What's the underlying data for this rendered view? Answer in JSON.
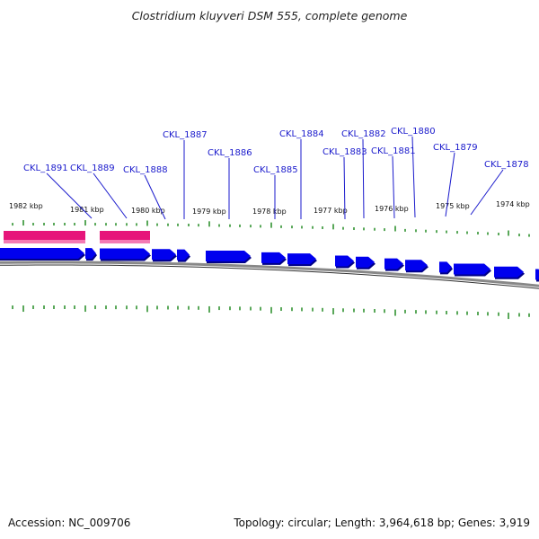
{
  "title": "Clostridium kluyveri DSM 555, complete genome",
  "accession_text": "Accession: NC_009706",
  "summary_text": "Topology: circular; Length: 3,964,618 bp; Genes: 3,919",
  "colors": {
    "gene": "#0000ee",
    "gene_shadow": "#000088",
    "feature": "#e6157a",
    "feature_light": "#f47ab4",
    "tick": "#228b22",
    "backbone": "#888888",
    "label_line": "#1a1acc"
  },
  "kbp_ticks": [
    {
      "label": "1982 kbp",
      "kbp": 1982
    },
    {
      "label": "1981 kbp",
      "kbp": 1981
    },
    {
      "label": "1980 kbp",
      "kbp": 1980
    },
    {
      "label": "1979 kbp",
      "kbp": 1979
    },
    {
      "label": "1978 kbp",
      "kbp": 1978
    },
    {
      "label": "1977 kbp",
      "kbp": 1977
    },
    {
      "label": "1976 kbp",
      "kbp": 1976
    },
    {
      "label": "1975 kbp",
      "kbp": 1975
    },
    {
      "label": "1974 kbp",
      "kbp": 1974
    }
  ],
  "gene_labels": [
    {
      "name": "CKL_1891"
    },
    {
      "name": "CKL_1889"
    },
    {
      "name": "CKL_1888"
    },
    {
      "name": "CKL_1887"
    },
    {
      "name": "CKL_1886"
    },
    {
      "name": "CKL_1885"
    },
    {
      "name": "CKL_1884"
    },
    {
      "name": "CKL_1883"
    },
    {
      "name": "CKL_1882"
    },
    {
      "name": "CKL_1881"
    },
    {
      "name": "CKL_1880"
    },
    {
      "name": "CKL_1879"
    },
    {
      "name": "CKL_1878"
    }
  ]
}
